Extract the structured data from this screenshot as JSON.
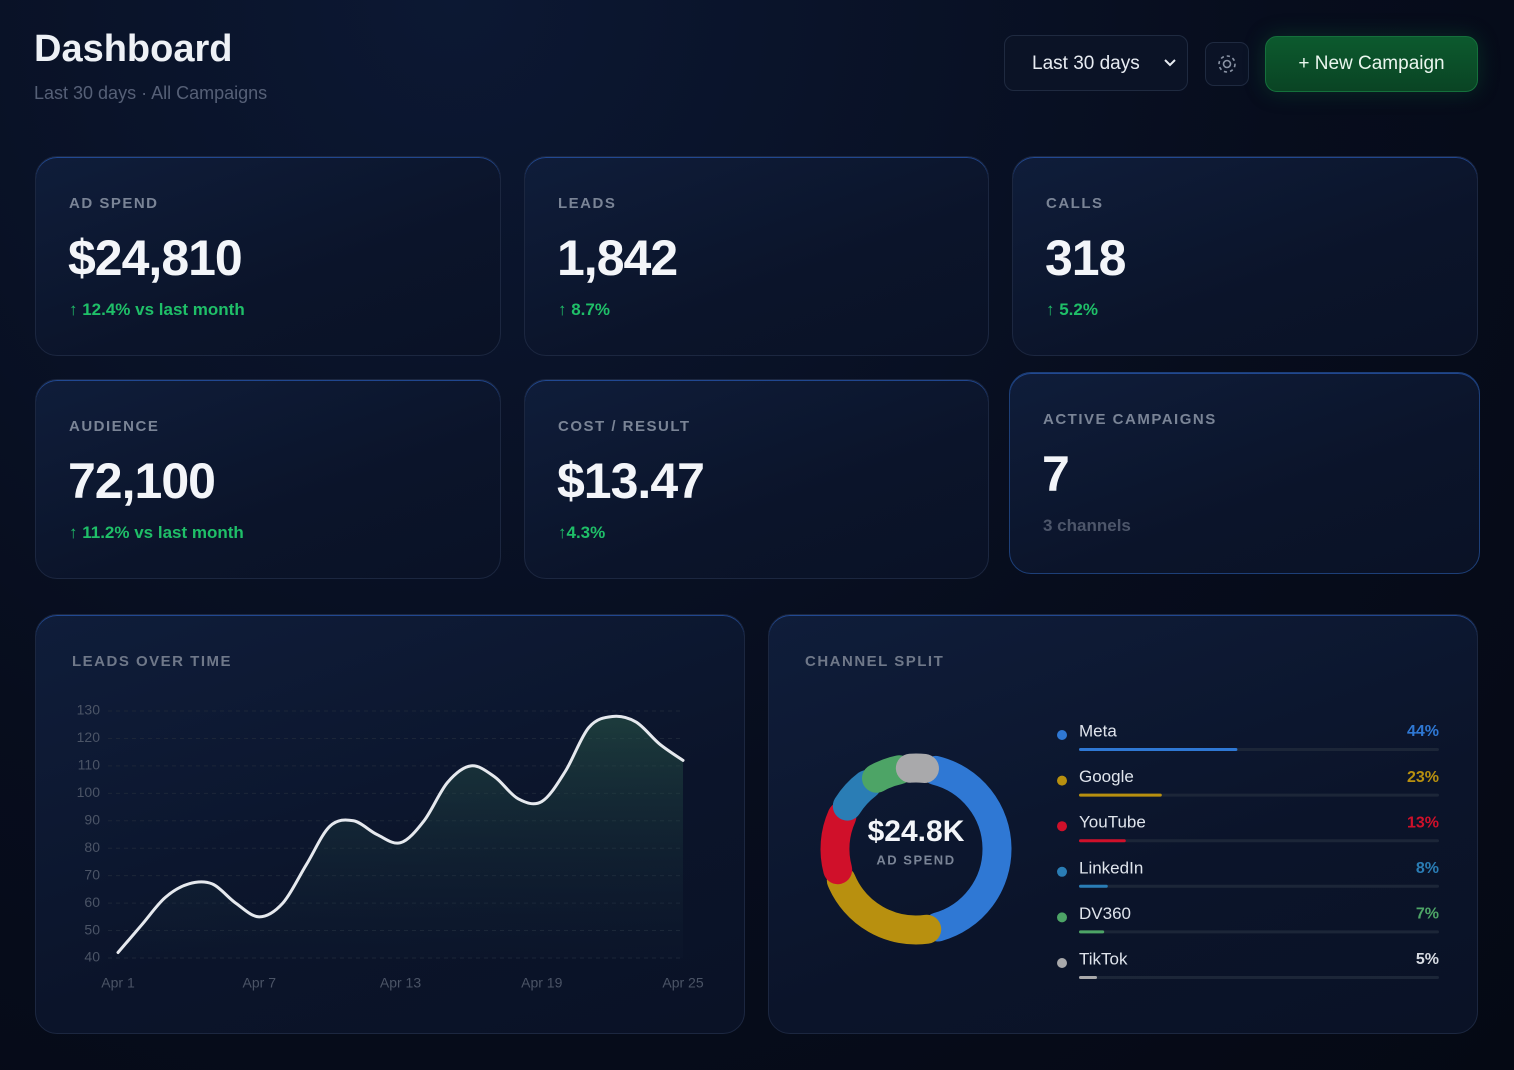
{
  "header": {
    "title": "Dashboard",
    "subtitle": "Last 30 days · All Campaigns",
    "range_select": "Last 30 days",
    "new_campaign": "+ New Campaign"
  },
  "kpis": [
    {
      "label": "AD SPEND",
      "value": "$24,810",
      "change": "↑ 12.4% vs last month"
    },
    {
      "label": "LEADS",
      "value": "1,842",
      "change": "↑ 8.7%"
    },
    {
      "label": "CALLS",
      "value": "318",
      "change": "↑ 5.2%"
    },
    {
      "label": "AUDIENCE",
      "value": "72,100",
      "change": "↑ 11.2% vs last month"
    },
    {
      "label": "COST / RESULT",
      "value": "$13.47",
      "change": "↑4.3%"
    },
    {
      "label": "ACTIVE CAMPAIGNS",
      "value": "7",
      "note": "3 channels"
    }
  ],
  "chart_data": [
    {
      "type": "line",
      "title": "LEADS OVER TIME",
      "categories": [
        "Apr 1",
        null,
        null,
        null,
        null,
        null,
        "Apr 7",
        null,
        null,
        null,
        null,
        null,
        "Apr 13",
        null,
        null,
        null,
        null,
        null,
        "Apr 19",
        null,
        null,
        null,
        null,
        null,
        "Apr 25"
      ],
      "values": [
        42,
        52,
        62,
        67,
        67,
        60,
        55,
        60,
        74,
        88,
        90,
        85,
        82,
        90,
        104,
        110,
        106,
        98,
        97,
        108,
        124,
        128,
        126,
        118,
        112
      ],
      "color": "#e6e9ee",
      "ylim": [
        40,
        130
      ],
      "yticks": [
        40,
        50,
        60,
        70,
        80,
        90,
        100,
        110,
        120,
        130
      ],
      "grid": true
    },
    {
      "type": "donut",
      "title": "CHANNEL SPLIT",
      "center_label": "$24.8K",
      "center_sublabel": "AD SPEND",
      "categories": [
        "Meta",
        "Google",
        "YouTube",
        "LinkedIn",
        "DV360",
        "TikTok"
      ],
      "values": [
        44,
        23,
        13,
        8,
        7,
        5
      ],
      "value_labels": [
        "44%",
        "23%",
        "13%",
        "8%",
        "7%",
        "5%"
      ],
      "colors": [
        "#2f78d4",
        "#b8900f",
        "#d0102a",
        "#2a7db5",
        "#4da466",
        "#a9a9ab"
      ]
    }
  ]
}
